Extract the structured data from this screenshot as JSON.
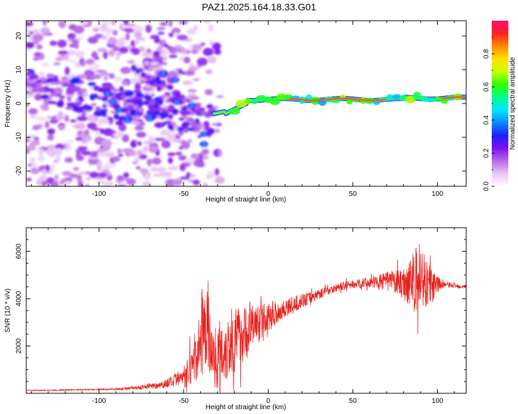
{
  "title": "PAZ1.2025.164.18.33.G01",
  "chart_data": [
    {
      "type": "heatmap",
      "xlabel": "Height of straight line (km)",
      "ylabel": "Frequency (Hz)",
      "xlim": [
        -143,
        117
      ],
      "ylim": [
        -24.5,
        24.5
      ],
      "xticks": [
        -100,
        -50,
        0,
        50,
        100
      ],
      "yticks": [
        -20,
        -10,
        0,
        10,
        20
      ],
      "colorbar": {
        "label": "Normalized spectral amplitude",
        "range": [
          0,
          1
        ],
        "ticks": [
          "0.0",
          "0.2",
          "0.4",
          "0.6",
          "0.8"
        ],
        "colors": [
          "#ffffff",
          "#e9c6f2",
          "#b66ce6",
          "#7a10f0",
          "#1a22ff",
          "#0a8cff",
          "#00e6ff",
          "#00ff8c",
          "#2eff00",
          "#c8ff00",
          "#ffe000",
          "#ff8a00",
          "#ff2020",
          "#ff1070"
        ]
      },
      "features": [
        {
          "description": "carrier ridge",
          "x_range": [
            -32,
            117
          ],
          "freq": [
            -3,
            2
          ],
          "amplitude": 0.75
        },
        {
          "description": "scattered low-altitude energy",
          "x_range": [
            -143,
            -30
          ],
          "freq": [
            -24,
            24
          ],
          "amplitude": 0.2
        }
      ]
    },
    {
      "type": "line",
      "xlabel": "Height of straight line (km)",
      "ylabel": "SNR (10 * v/v)",
      "xlim": [
        -143,
        117
      ],
      "ylim": [
        0,
        7000
      ],
      "xticks": [
        -100,
        -50,
        0,
        50,
        100
      ],
      "yticks": [
        2000,
        4000,
        6000
      ],
      "line_color": "#e8201c",
      "series": [
        {
          "x": [
            -143,
            -130,
            -120,
            -110,
            -100,
            -90,
            -80,
            -75,
            -70,
            -65,
            -60,
            -55,
            -50,
            -47,
            -45,
            -42,
            -40,
            -38,
            -36,
            -35,
            -34,
            -32,
            -30,
            -28,
            -25,
            -22,
            -20,
            -18,
            -15,
            -12,
            -10,
            -8,
            -5,
            -3,
            0,
            3,
            5,
            8,
            10,
            15,
            20,
            25,
            30,
            35,
            40,
            45,
            50,
            55,
            60,
            65,
            70,
            75,
            80,
            82,
            85,
            87,
            88,
            90,
            92,
            95,
            98,
            100,
            102,
            105,
            110,
            117
          ],
          "y": [
            120,
            130,
            140,
            150,
            160,
            180,
            230,
            250,
            300,
            350,
            420,
            500,
            700,
            900,
            1300,
            1700,
            2100,
            2600,
            3000,
            2400,
            1800,
            1500,
            1600,
            1800,
            1900,
            2100,
            2200,
            2400,
            2500,
            2600,
            2800,
            2900,
            3000,
            3100,
            3200,
            3300,
            3400,
            3500,
            3600,
            3750,
            3900,
            4050,
            4200,
            4350,
            4450,
            4550,
            4600,
            4650,
            4700,
            4700,
            4750,
            4700,
            4650,
            4700,
            4800,
            4500,
            4900,
            5000,
            4800,
            4600,
            4500,
            4600,
            4600,
            4600,
            4550,
            4500
          ],
          "noise": [
            20,
            20,
            25,
            25,
            30,
            40,
            60,
            80,
            120,
            150,
            200,
            300,
            450,
            700,
            900,
            1200,
            1500,
            1700,
            1800,
            1500,
            1300,
            1300,
            1400,
            1500,
            1500,
            1400,
            1400,
            1300,
            1200,
            1100,
            1000,
            900,
            800,
            700,
            600,
            550,
            500,
            450,
            400,
            350,
            300,
            260,
            220,
            200,
            180,
            180,
            180,
            200,
            250,
            300,
            400,
            500,
            700,
            900,
            1100,
            1500,
            1700,
            1500,
            1300,
            900,
            600,
            400,
            200,
            120,
            100,
            80
          ]
        }
      ]
    }
  ]
}
